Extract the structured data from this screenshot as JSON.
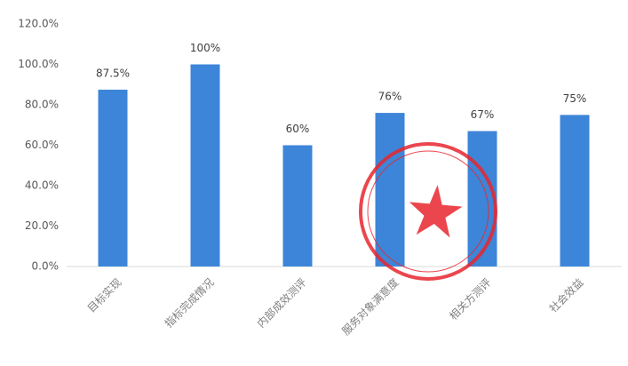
{
  "chart_data": {
    "type": "bar",
    "categories": [
      "目标实现",
      "指标完成情况",
      "内部成效测评",
      "服务对象满意度",
      "相关方测评",
      "社会效益"
    ],
    "values": [
      87.5,
      100,
      60,
      76,
      67,
      75
    ],
    "value_labels": [
      "87.5%",
      "100%",
      "60%",
      "76%",
      "67%",
      "75%"
    ],
    "color": "#3d85d8",
    "ylim": [
      0,
      120
    ],
    "yticks": [
      {
        "value": 0,
        "label": "0.0%"
      },
      {
        "value": 20,
        "label": "20.0%"
      },
      {
        "value": 40,
        "label": "40.0%"
      },
      {
        "value": 60,
        "label": "60.0%"
      },
      {
        "value": 80,
        "label": "80.0%"
      },
      {
        "value": 100,
        "label": "100.0%"
      },
      {
        "value": 120,
        "label": "120.0%"
      }
    ],
    "grid": false
  }
}
